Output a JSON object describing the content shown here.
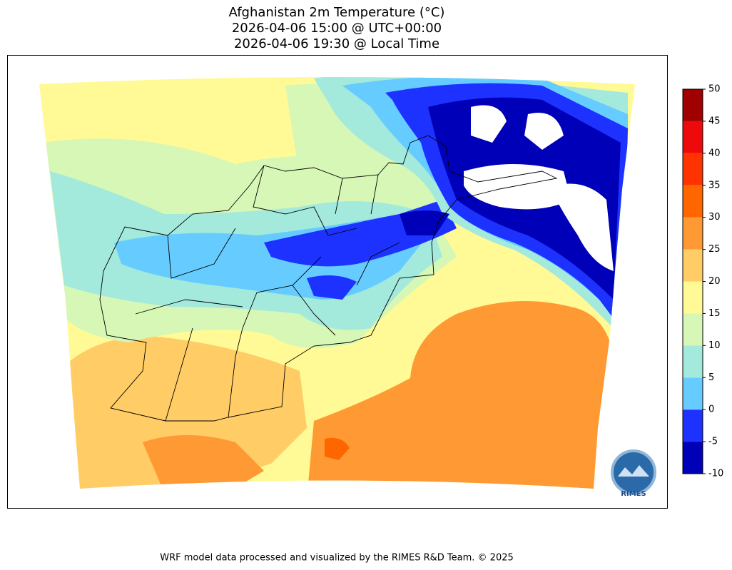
{
  "title": [
    "Afghanistan 2m Temperature (°C)",
    "2026-04-06 15:00 @ UTC+00:00",
    "2026-04-06 19:30 @ Local Time"
  ],
  "colorbar": {
    "lim": [
      -10,
      50
    ],
    "ticks": [
      -10,
      -5,
      0,
      5,
      10,
      15,
      20,
      25,
      30,
      35,
      40,
      45,
      50
    ],
    "colors": [
      "#0000b8",
      "#1e32ff",
      "#66ccff",
      "#a3e9dc",
      "#d6f7b5",
      "#fffa96",
      "#ffcc66",
      "#ff9933",
      "#ff6600",
      "#ff3300",
      "#ee0a0a",
      "#a00000"
    ]
  },
  "logo": "RIMES",
  "footer": "WRF model data processed and visualized by the RIMES R&D Team. © 2025"
}
